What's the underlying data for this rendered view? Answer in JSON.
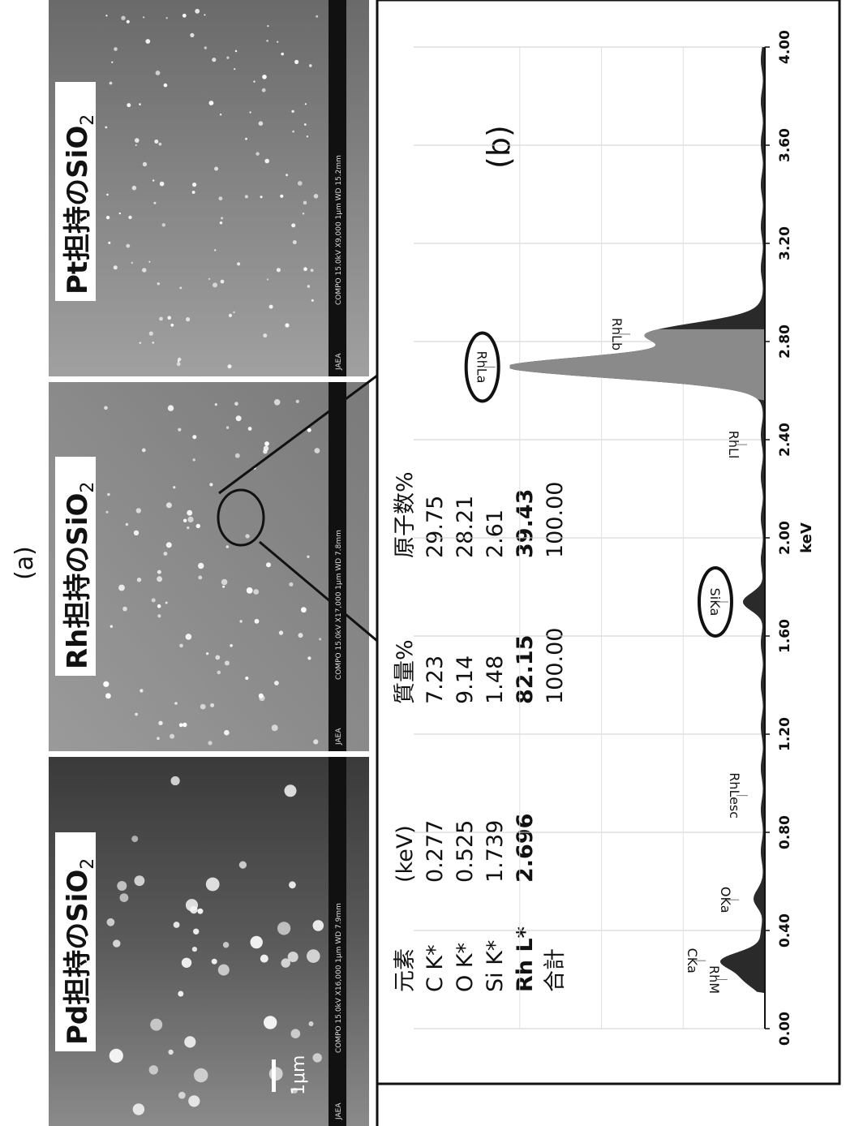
{
  "figure": {
    "panel_a_label": "(a)",
    "panel_b_label": "(b)"
  },
  "sem_images": [
    {
      "label_main": "Pd担持のSiO",
      "label_sub": "2",
      "info_bar": {
        "left": "JAEA",
        "text": "COMPO 15.0kV X16,000 1μm WD 7.9mm"
      },
      "scale_bar_label": "1μm"
    },
    {
      "label_main": "Rh担持のSiO",
      "label_sub": "2",
      "info_bar": {
        "left": "JAEA",
        "text": "COMPO 15.0kV X17,000 1μm WD 7.8mm"
      }
    },
    {
      "label_main": "Pt担持のSiO",
      "label_sub": "2",
      "info_bar": {
        "left": "JAEA",
        "text": "COMPO 15.0kV X9,000 1μm WD 15.2mm"
      }
    }
  ],
  "composition_table": {
    "headers": [
      "元素",
      "(keV)",
      "質量%",
      "原子数%"
    ],
    "rows": [
      {
        "element": "C K*",
        "kev": "0.277",
        "mass": "7.23",
        "atom": "29.75",
        "bold": false
      },
      {
        "element": "O K*",
        "kev": "0.525",
        "mass": "9.14",
        "atom": "28.21",
        "bold": false
      },
      {
        "element": "Si K*",
        "kev": "1.739",
        "mass": "1.48",
        "atom": "2.61",
        "bold": false
      },
      {
        "element": "Rh L*",
        "kev": "2.696",
        "mass": "82.15",
        "atom": "39.43",
        "bold": true
      }
    ],
    "total": {
      "element": "合計",
      "mass": "100.00",
      "atom": "100.00"
    }
  },
  "chart_data": {
    "type": "area",
    "xlabel": "keV",
    "ylabel": "",
    "xlim": [
      0.0,
      4.0
    ],
    "x_ticks": [
      "0.00",
      "0.40",
      "0.80",
      "1.20",
      "1.60",
      "2.00",
      "2.40",
      "2.80",
      "3.20",
      "3.60",
      "4.00"
    ],
    "grid": true,
    "peaks": [
      {
        "label": "RhM",
        "kev": 0.2,
        "relative_height": 0.06,
        "circled": false
      },
      {
        "label": "CKa",
        "kev": 0.277,
        "relative_height": 0.16,
        "circled": false
      },
      {
        "label": "OKa",
        "kev": 0.525,
        "relative_height": 0.03,
        "circled": false
      },
      {
        "label": "RhLesc",
        "kev": 0.95,
        "relative_height": 0.0,
        "circled": false
      },
      {
        "label": "SiKa",
        "kev": 1.739,
        "relative_height": 0.07,
        "circled": true
      },
      {
        "label": "RhLl",
        "kev": 2.38,
        "relative_height": 0.0,
        "circled": false
      },
      {
        "label": "RhLa",
        "kev": 2.696,
        "relative_height": 1.0,
        "circled": true
      },
      {
        "label": "RhLb",
        "kev": 2.83,
        "relative_height": 0.45,
        "circled": false
      }
    ]
  }
}
